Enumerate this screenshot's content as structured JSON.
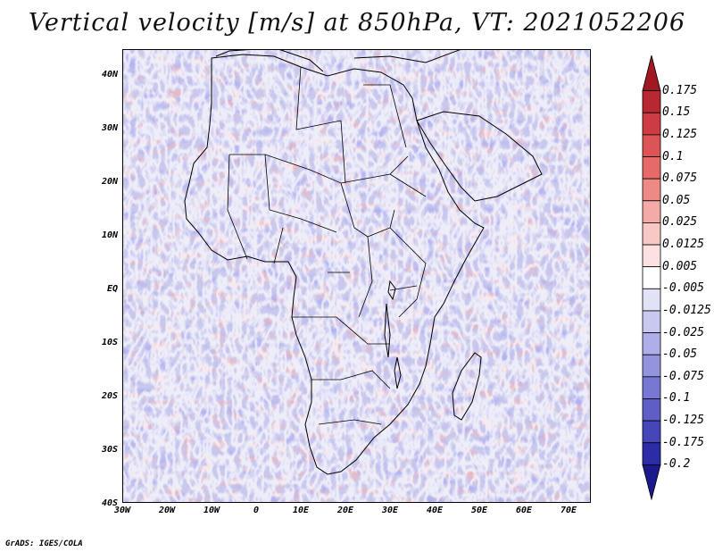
{
  "title": "Vertical velocity [m/s] at 850hPa, VT: 2021052206",
  "credit": "GrADS: IGES/COLA",
  "lat_labels": [
    "40N",
    "30N",
    "20N",
    "10N",
    "EQ",
    "10S",
    "20S",
    "30S",
    "40S"
  ],
  "lon_labels": [
    "30W",
    "20W",
    "10W",
    "0",
    "10E",
    "20E",
    "30E",
    "40E",
    "50E",
    "60E",
    "70E"
  ],
  "colorbar": {
    "levels": [
      "0.175",
      "0.15",
      "0.125",
      "0.1",
      "0.075",
      "0.05",
      "0.025",
      "0.0125",
      "0.005",
      "-0.005",
      "-0.0125",
      "-0.025",
      "-0.05",
      "-0.075",
      "-0.1",
      "-0.125",
      "-0.175",
      "-0.2"
    ],
    "colors": [
      "#a01820",
      "#b82832",
      "#cc3c42",
      "#dc5454",
      "#e66a68",
      "#ee8a86",
      "#f4aaa6",
      "#f8c8c4",
      "#fbe2e0",
      "#ffffff",
      "#e2e2f6",
      "#c8c8f0",
      "#aeaee8",
      "#9494de",
      "#7878d2",
      "#5e5ec6",
      "#4646b8",
      "#2c2ca6",
      "#1a1a8c"
    ]
  }
}
